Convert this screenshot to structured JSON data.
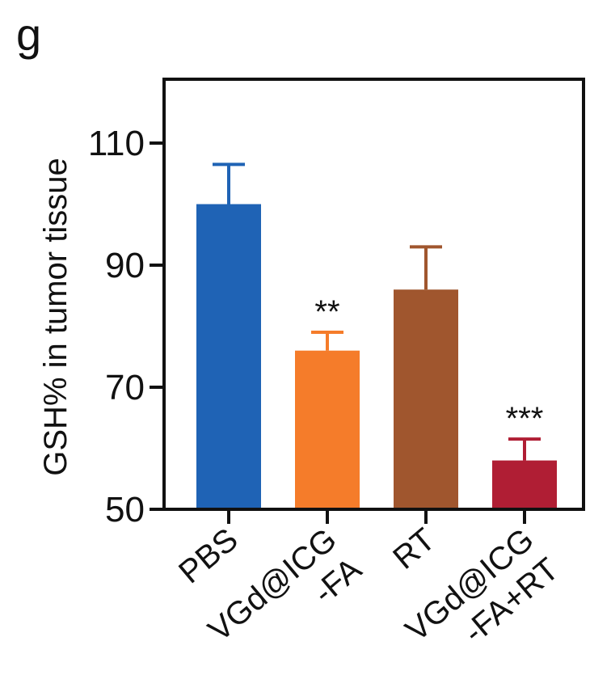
{
  "panel_label": "g",
  "chart_data": {
    "type": "bar",
    "ylabel": "GSH% in  tumor tissue",
    "xlabel": "",
    "ylim": [
      50,
      120
    ],
    "yticks": [
      50,
      70,
      90,
      110
    ],
    "categories": [
      [
        "PBS"
      ],
      [
        "VGd@ICG",
        "-FA"
      ],
      [
        "RT"
      ],
      [
        "VGd@ICG",
        "-FA+RT"
      ]
    ],
    "values": [
      100,
      76,
      86,
      58
    ],
    "error_upper": [
      106.5,
      79,
      93,
      61.5
    ],
    "colors": [
      "#1f63b5",
      "#f57c2a",
      "#a0562e",
      "#b01e34"
    ],
    "significance": [
      "",
      "**",
      "",
      "***"
    ],
    "grid": false,
    "legend": "none"
  }
}
